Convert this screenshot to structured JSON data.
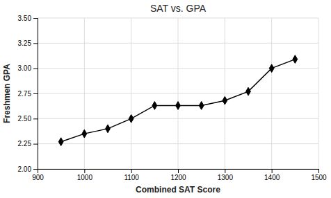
{
  "chart_data": {
    "type": "line",
    "title": "SAT vs. GPA",
    "xlabel": "Combined SAT Score",
    "ylabel": "Freshmen GPA",
    "x": [
      950,
      1000,
      1050,
      1100,
      1150,
      1200,
      1250,
      1300,
      1350,
      1400,
      1450
    ],
    "values": [
      2.27,
      2.35,
      2.4,
      2.5,
      2.63,
      2.63,
      2.63,
      2.68,
      2.77,
      3.0,
      3.09
    ],
    "color": "#000000",
    "marker": "diamond",
    "xlim": [
      900,
      1500
    ],
    "ylim": [
      2.0,
      3.5
    ],
    "xticks": [
      900,
      1000,
      1100,
      1200,
      1300,
      1400,
      1500
    ],
    "yticks": [
      {
        "value": 2.0,
        "label": "2.00"
      },
      2.25,
      {
        "value": 2.5,
        "label": "2.50"
      },
      2.75,
      {
        "value": 3.0,
        "label": "3.00"
      },
      3.25,
      {
        "value": 3.5,
        "label": "3.50"
      }
    ],
    "grid": true
  }
}
